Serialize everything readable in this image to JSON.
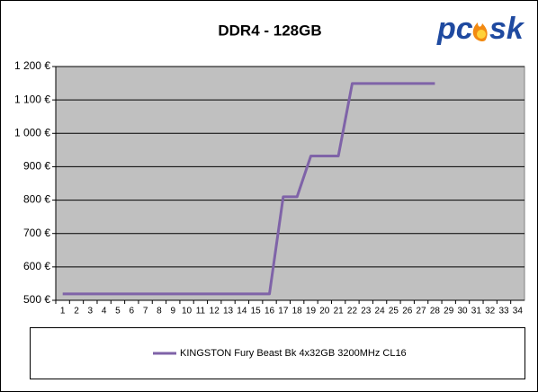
{
  "chart_data": {
    "type": "line",
    "title": "DDR4 - 128GB",
    "logo": [
      "pc",
      "sk"
    ],
    "categories": [
      "1",
      "2",
      "3",
      "4",
      "5",
      "6",
      "7",
      "8",
      "9",
      "10",
      "11",
      "12",
      "13",
      "14",
      "15",
      "16",
      "17",
      "18",
      "19",
      "20",
      "21",
      "22",
      "23",
      "24",
      "25",
      "26",
      "27",
      "28",
      "29",
      "30",
      "31",
      "32",
      "33",
      "34"
    ],
    "series": [
      {
        "name": "KINGSTON Fury Beast Bk 4x32GB 3200MHz CL16",
        "color": "#7f63a8",
        "values": [
          519,
          519,
          519,
          519,
          519,
          519,
          519,
          519,
          519,
          519,
          519,
          519,
          519,
          519,
          519,
          519,
          810,
          810,
          932,
          932,
          932,
          1149,
          1149,
          1149,
          1149,
          1149,
          1149,
          1149,
          null,
          null,
          null,
          null,
          null,
          null
        ]
      }
    ],
    "ylim": [
      500,
      1200
    ],
    "yticks": [
      {
        "value": 500,
        "label": "500 €"
      },
      {
        "value": 600,
        "label": "600 €"
      },
      {
        "value": 700,
        "label": "700 €"
      },
      {
        "value": 800,
        "label": "800 €"
      },
      {
        "value": 900,
        "label": "900 €"
      },
      {
        "value": 1000,
        "label": "1 000 €"
      },
      {
        "value": 1100,
        "label": "1 100 €"
      },
      {
        "value": 1200,
        "label": "1 200 €"
      }
    ],
    "grid": true,
    "legend": "bottom"
  }
}
